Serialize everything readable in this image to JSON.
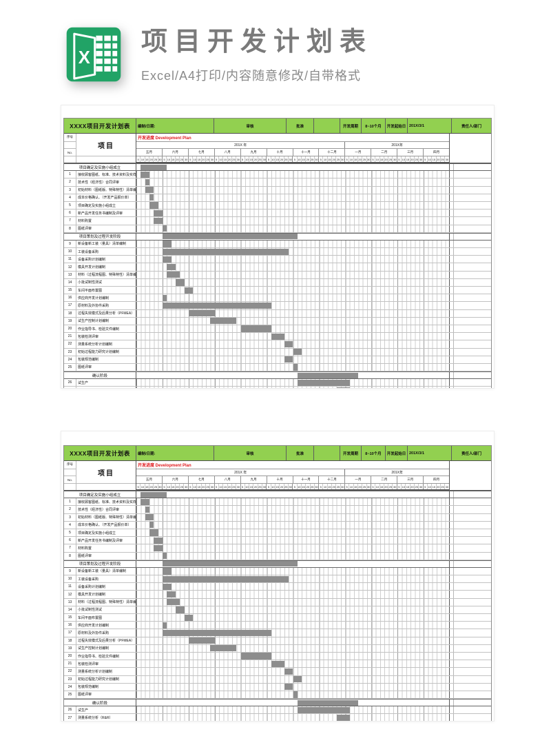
{
  "header": {
    "title": "项目开发计划表",
    "subtitle": "Excel/A4打印/内容随意修改/自带格式",
    "icon_letter": "X",
    "icon_color": "#21A366"
  },
  "colors": {
    "sheet_header_green": "#92D050",
    "gantt_bar_gray": "#8d8d8d",
    "plan_title_red": "#e0191d"
  },
  "sheet": {
    "top": {
      "cells": [
        "XXXX项目开发计划表",
        "编制/日期:",
        "审核",
        "批准",
        "",
        "开发周期",
        "8~10个月",
        "开发起始日",
        "201X/3/1",
        "责任人/部门"
      ]
    },
    "headers": {
      "seq": "序号",
      "no": "No.",
      "project": "项目",
      "plan_title": "开发进度 Development Plan",
      "year1": "201X 年",
      "year2": "201X年"
    },
    "months_year1": [
      "五月",
      "六月",
      "七月",
      "八月",
      "九月",
      "十月",
      "十一月",
      "十二月"
    ],
    "months_year2": [
      "一月",
      "二月",
      "三月",
      "四月"
    ],
    "day_ticks": [
      "5",
      "10",
      "15",
      "20",
      "25",
      "30"
    ],
    "rows": [
      {
        "type": "phase",
        "label": "项目确定及实施小组成立",
        "bar": [
          1,
          7
        ]
      },
      {
        "type": "task",
        "no": "1",
        "label": "接收顾客图纸、标准、技术资料及实样",
        "bar": [
          1,
          3
        ]
      },
      {
        "type": "task",
        "no": "2",
        "label": "技术性（经济性）合同评审",
        "bar": [
          2,
          3
        ]
      },
      {
        "type": "task",
        "no": "3",
        "label": "初始材料（图纸版、特殊特性）清单编制",
        "bar": [
          2,
          4
        ]
      },
      {
        "type": "task",
        "no": "4",
        "label": "成本价格确认、（开发产品报价单）",
        "bar": [
          3,
          4
        ]
      },
      {
        "type": "task",
        "no": "5",
        "label": "项目确定及实施小组成立",
        "bar": [
          3,
          5
        ]
      },
      {
        "type": "task",
        "no": "6",
        "label": "新产品开发任务书编制及评审",
        "bar": [
          4,
          6
        ]
      },
      {
        "type": "task",
        "no": "7",
        "label": "材料购置",
        "bar": [
          4,
          6
        ]
      },
      {
        "type": "task",
        "no": "8",
        "label": "图纸评审",
        "bar": [
          6,
          7
        ]
      },
      {
        "type": "phase",
        "label": "项目策划及过程开发阶段",
        "bar": [
          6,
          37
        ]
      },
      {
        "type": "task",
        "no": "9",
        "label": "新设备新工装（量具）清单编制",
        "bar": [
          6,
          8
        ]
      },
      {
        "type": "task",
        "no": "10",
        "label": "工装设备采购",
        "bar": [
          6,
          35
        ]
      },
      {
        "type": "task",
        "no": "11",
        "label": "设备采购计划编制",
        "bar": [
          6,
          8
        ]
      },
      {
        "type": "task",
        "no": "12",
        "label": "模具开发计划编制",
        "bar": [
          7,
          9
        ]
      },
      {
        "type": "task",
        "no": "13",
        "label": "材料（过程流程图、特殊特性）清单编制",
        "bar": [
          7,
          10
        ]
      },
      {
        "type": "task",
        "no": "14",
        "label": "小批试制性测试",
        "bar": [
          9,
          11
        ]
      },
      {
        "type": "task",
        "no": "15",
        "label": "车间平面布置图",
        "bar": [
          11,
          13
        ]
      },
      {
        "type": "task",
        "no": "16",
        "label": "供应商开发计划编制",
        "bar": [
          6,
          7
        ]
      },
      {
        "type": "task",
        "no": "17",
        "label": "原材料及外协件采购",
        "bar": [
          6,
          31
        ]
      },
      {
        "type": "task",
        "no": "18",
        "label": "过程失效模式及后果分析（PFMEA）",
        "bar": [
          12,
          18
        ]
      },
      {
        "type": "task",
        "no": "19",
        "label": "试生产控制计划编制",
        "bar": [
          17,
          23
        ]
      },
      {
        "type": "task",
        "no": "20",
        "label": "作业指导书、检验文件编制",
        "bar": [
          24,
          31
        ]
      },
      {
        "type": "task",
        "no": "21",
        "label": "包装检测评审",
        "bar": [
          31,
          34
        ]
      },
      {
        "type": "task",
        "no": "22",
        "label": "测量系统分析计划编制",
        "bar": [
          34,
          36
        ]
      },
      {
        "type": "task",
        "no": "23",
        "label": "初始过程能力研究计划编制",
        "bar": [
          36,
          38
        ]
      },
      {
        "type": "task",
        "no": "24",
        "label": "包装规范编制",
        "bar": [
          34,
          36
        ]
      },
      {
        "type": "task",
        "no": "25",
        "label": "图纸评审",
        "bar": [
          36,
          37
        ]
      },
      {
        "type": "phase",
        "label": "确认阶段",
        "bar": [
          37,
          51
        ]
      },
      {
        "type": "task",
        "no": "26",
        "label": "试生产",
        "bar": [
          37,
          49
        ]
      },
      {
        "type": "task",
        "no": "27",
        "label": "测量系统分析（R&R）",
        "bar": [
          46,
          49
        ]
      }
    ]
  }
}
